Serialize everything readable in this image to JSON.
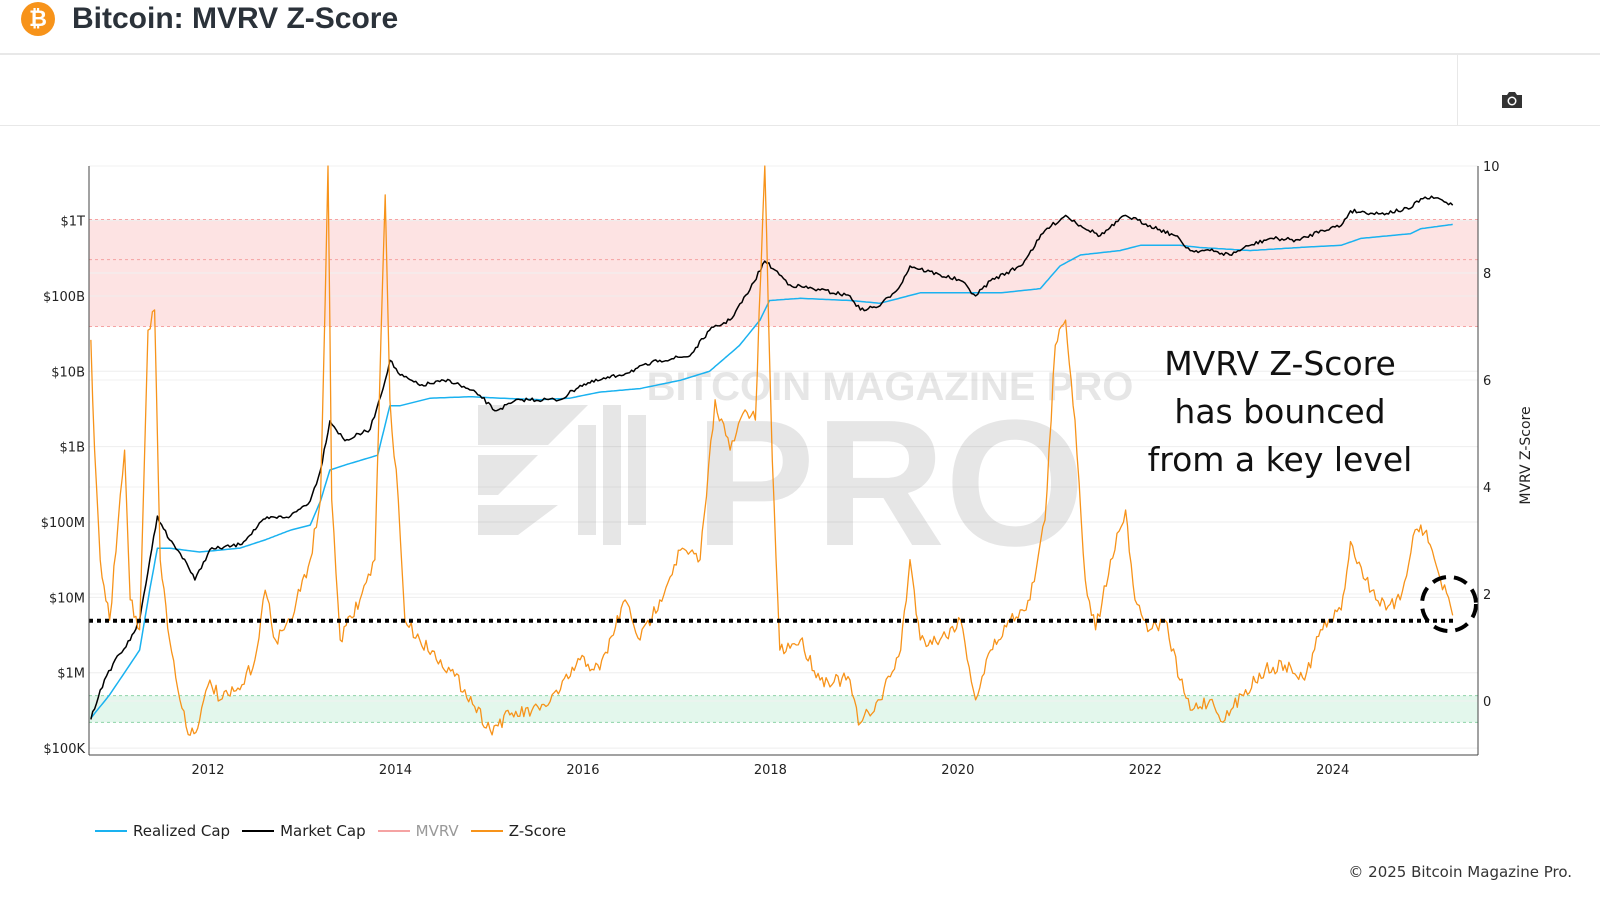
{
  "header": {
    "title": "Bitcoin: MVRV Z-Score",
    "logo_icon": "bitcoin-icon",
    "logo_glyph": "₿"
  },
  "toolbar": {
    "screenshot_icon": "camera-icon"
  },
  "watermark": "BITCOIN MAGAZINE PRO",
  "annotation": {
    "lines": [
      "MVRV Z-Score",
      "has bounced",
      "from a key level"
    ]
  },
  "footer": "© 2025 Bitcoin Magazine Pro.",
  "colors": {
    "realized_cap": "#1ab2f0",
    "market_cap": "#000000",
    "mvrv": "#f5a3a3",
    "z_score": "#f7931a",
    "red_band": "#fde3e3",
    "green_band": "#e3f7ec"
  },
  "chart_data": {
    "type": "line",
    "title": "Bitcoin: MVRV Z-Score",
    "x_ticks": [
      "2012",
      "2014",
      "2016",
      "2018",
      "2020",
      "2022",
      "2024"
    ],
    "xlim": [
      2010.73,
      2025.55
    ],
    "y_left": {
      "scale": "log",
      "ticks": [
        "$100K",
        "$1M",
        "$10M",
        "$100M",
        "$1B",
        "$10B",
        "$100B",
        "$1T"
      ],
      "tick_values": [
        100000.0,
        1000000.0,
        10000000.0,
        100000000.0,
        1000000000.0,
        10000000000.0,
        100000000000.0,
        1000000000000.0
      ],
      "range": [
        81000.0,
        5300000000000.0
      ]
    },
    "y_right": {
      "label": "MVRV Z-Score",
      "ticks": [
        "0",
        "2",
        "4",
        "6",
        "8",
        "10"
      ],
      "tick_values": [
        0,
        2,
        4,
        6,
        8,
        10
      ],
      "range": [
        -1.01,
        10
      ]
    },
    "bands": [
      {
        "name": "red",
        "from": 7,
        "to": 9,
        "mid_line": 8.25
      },
      {
        "name": "green",
        "from": -0.4,
        "to": 0.1
      }
    ],
    "key_level": 1.5,
    "grid": true,
    "legend": {
      "placement": "bottom-left",
      "entries": [
        "Realized Cap",
        "Market Cap",
        "MVRV",
        "Z-Score"
      ]
    },
    "series": [
      {
        "name": "Z-Score",
        "axis": "right",
        "x": [
          2010.75,
          2010.79,
          2010.85,
          2010.95,
          2011.11,
          2011.17,
          2011.27,
          2011.36,
          2011.43,
          2011.49,
          2011.59,
          2011.7,
          2011.81,
          2011.91,
          2012.02,
          2012.13,
          2012.34,
          2012.5,
          2012.61,
          2012.72,
          2012.88,
          2013.09,
          2013.2,
          2013.25,
          2013.28,
          2013.32,
          2013.41,
          2013.62,
          2013.78,
          2013.89,
          2013.94,
          2014.03,
          2014.1,
          2014.26,
          2014.48,
          2014.74,
          2015.01,
          2015.22,
          2015.54,
          2015.76,
          2015.97,
          2016.18,
          2016.45,
          2016.61,
          2016.82,
          2017.04,
          2017.25,
          2017.41,
          2017.57,
          2017.73,
          2017.84,
          2017.94,
          2018.02,
          2018.1,
          2018.32,
          2018.53,
          2018.85,
          2018.94,
          2019.17,
          2019.39,
          2019.49,
          2019.6,
          2019.81,
          2020.03,
          2020.19,
          2020.35,
          2020.56,
          2020.77,
          2020.93,
          2021.04,
          2021.15,
          2021.25,
          2021.36,
          2021.47,
          2021.63,
          2021.79,
          2021.89,
          2022.05,
          2022.21,
          2022.37,
          2022.48,
          2022.69,
          2022.85,
          2023.07,
          2023.28,
          2023.49,
          2023.7,
          2023.87,
          2024.09,
          2024.19,
          2024.35,
          2024.57,
          2024.72,
          2024.88,
          2024.94,
          2025.04,
          2025.15,
          2025.28
        ],
        "y": [
          6.75,
          4.69,
          2.64,
          1.51,
          4.69,
          1.89,
          1.33,
          6.93,
          7.31,
          2.64,
          1.14,
          0.02,
          -0.64,
          -0.36,
          0.39,
          0.02,
          0.21,
          0.77,
          2.07,
          1.14,
          1.51,
          2.64,
          3.76,
          7.5,
          10,
          3.76,
          1.14,
          1.89,
          2.64,
          9.46,
          5.63,
          3.76,
          1.51,
          1.14,
          0.77,
          0.21,
          -0.54,
          -0.26,
          -0.17,
          0.21,
          0.77,
          0.58,
          1.89,
          1.14,
          1.89,
          2.82,
          2.64,
          5.63,
          4.69,
          5.44,
          5.25,
          10,
          4.5,
          0.95,
          1.14,
          0.39,
          0.39,
          -0.45,
          0.02,
          0.95,
          2.64,
          1.14,
          1.14,
          1.51,
          0.02,
          0.95,
          1.51,
          1.89,
          3.38,
          6.65,
          7.12,
          5.25,
          2.26,
          1.33,
          2.64,
          3.57,
          1.89,
          1.33,
          1.51,
          0.39,
          -0.17,
          0.02,
          -0.36,
          0.21,
          0.58,
          0.67,
          0.39,
          1.33,
          1.7,
          2.98,
          2.26,
          1.7,
          1.89,
          3.2,
          3.29,
          2.92,
          2.26,
          1.6
        ]
      },
      {
        "name": "Market Cap",
        "axis": "left",
        "x": [
          2010.75,
          2010.85,
          2011.01,
          2011.17,
          2011.27,
          2011.38,
          2011.46,
          2011.59,
          2011.75,
          2011.86,
          2012.02,
          2012.34,
          2012.61,
          2012.88,
          2013.09,
          2013.2,
          2013.3,
          2013.46,
          2013.73,
          2013.89,
          2013.94,
          2014.05,
          2014.26,
          2014.58,
          2014.9,
          2015.06,
          2015.33,
          2015.76,
          2015.97,
          2016.39,
          2016.82,
          2017.14,
          2017.35,
          2017.57,
          2017.78,
          2017.94,
          2018.05,
          2018.21,
          2018.53,
          2018.85,
          2018.96,
          2019.17,
          2019.39,
          2019.49,
          2019.81,
          2020.03,
          2020.19,
          2020.35,
          2020.67,
          2020.93,
          2021.15,
          2021.31,
          2021.52,
          2021.79,
          2022.05,
          2022.32,
          2022.48,
          2022.69,
          2022.9,
          2023.12,
          2023.33,
          2023.65,
          2023.87,
          2024.09,
          2024.19,
          2024.51,
          2024.83,
          2024.94,
          2025.1,
          2025.28
        ],
        "y": [
          240000.0,
          590000.0,
          1500000.0,
          2700000.0,
          5000000.0,
          32000000.0,
          120000000.0,
          58000000.0,
          32000000.0,
          17000000.0,
          43000000.0,
          50000000.0,
          110000000.0,
          120000000.0,
          190000000.0,
          490000000.0,
          2200000000.0,
          1200000000.0,
          1700000000.0,
          7600000000.0,
          14000000000.0,
          8900000000.0,
          6500000000.0,
          7600000000.0,
          4800000000.0,
          3000000000.0,
          4200000000.0,
          4200000000.0,
          6500000000.0,
          8900000000.0,
          14000000000.0,
          16000000000.0,
          35000000000.0,
          48000000000.0,
          120000000000.0,
          290000000000.0,
          220000000000.0,
          140000000000.0,
          120000000000.0,
          100000000000.0,
          65000000000.0,
          74000000000.0,
          140000000000.0,
          250000000000.0,
          190000000000.0,
          160000000000.0,
          100000000000.0,
          160000000000.0,
          250000000000.0,
          740000000000.0,
          1170000000000.0,
          860000000000.0,
          630000000000.0,
          1170000000000.0,
          860000000000.0,
          630000000000.0,
          400000000000.0,
          400000000000.0,
          350000000000.0,
          470000000000.0,
          580000000000.0,
          550000000000.0,
          740000000000.0,
          860000000000.0,
          1350000000000.0,
          1230000000000.0,
          1450000000000.0,
          1950000000000.0,
          2000000000000.0,
          1600000000000.0
        ]
      },
      {
        "name": "Realized Cap",
        "axis": "left",
        "x": [
          2010.75,
          2010.95,
          2011.17,
          2011.27,
          2011.38,
          2011.46,
          2011.59,
          2011.91,
          2012.34,
          2012.61,
          2012.88,
          2013.09,
          2013.2,
          2013.3,
          2013.46,
          2013.81,
          2013.94,
          2014.05,
          2014.37,
          2014.8,
          2015.12,
          2015.54,
          2015.86,
          2016.18,
          2016.61,
          2017.04,
          2017.35,
          2017.67,
          2017.89,
          2017.99,
          2018.32,
          2018.85,
          2019.17,
          2019.6,
          2020.03,
          2020.46,
          2020.88,
          2021.09,
          2021.31,
          2021.73,
          2021.95,
          2022.37,
          2022.58,
          2023.12,
          2023.65,
          2024.09,
          2024.3,
          2024.83,
          2024.94,
          2025.28
        ],
        "y": [
          250000.0,
          510000.0,
          1300000.0,
          2000000.0,
          13000000.0,
          45000000.0,
          45000000.0,
          40000000.0,
          45000000.0,
          58000000.0,
          78000000.0,
          91000000.0,
          190000000.0,
          490000000.0,
          570000000.0,
          770000000.0,
          3500000000.0,
          3500000000.0,
          4400000000.0,
          4600000000.0,
          4400000000.0,
          4200000000.0,
          4400000000.0,
          5300000000.0,
          5900000000.0,
          7600000000.0,
          10000000000.0,
          22000000000.0,
          48000000000.0,
          87000000000.0,
          93000000000.0,
          87000000000.0,
          80000000000.0,
          110000000000.0,
          110000000000.0,
          110000000000.0,
          125000000000.0,
          250000000000.0,
          350000000000.0,
          400000000000.0,
          470000000000.0,
          470000000000.0,
          440000000000.0,
          400000000000.0,
          440000000000.0,
          470000000000.0,
          580000000000.0,
          670000000000.0,
          780000000000.0,
          890000000000.0
        ]
      },
      {
        "name": "MVRV",
        "axis": "left",
        "x": [],
        "y": []
      }
    ]
  }
}
